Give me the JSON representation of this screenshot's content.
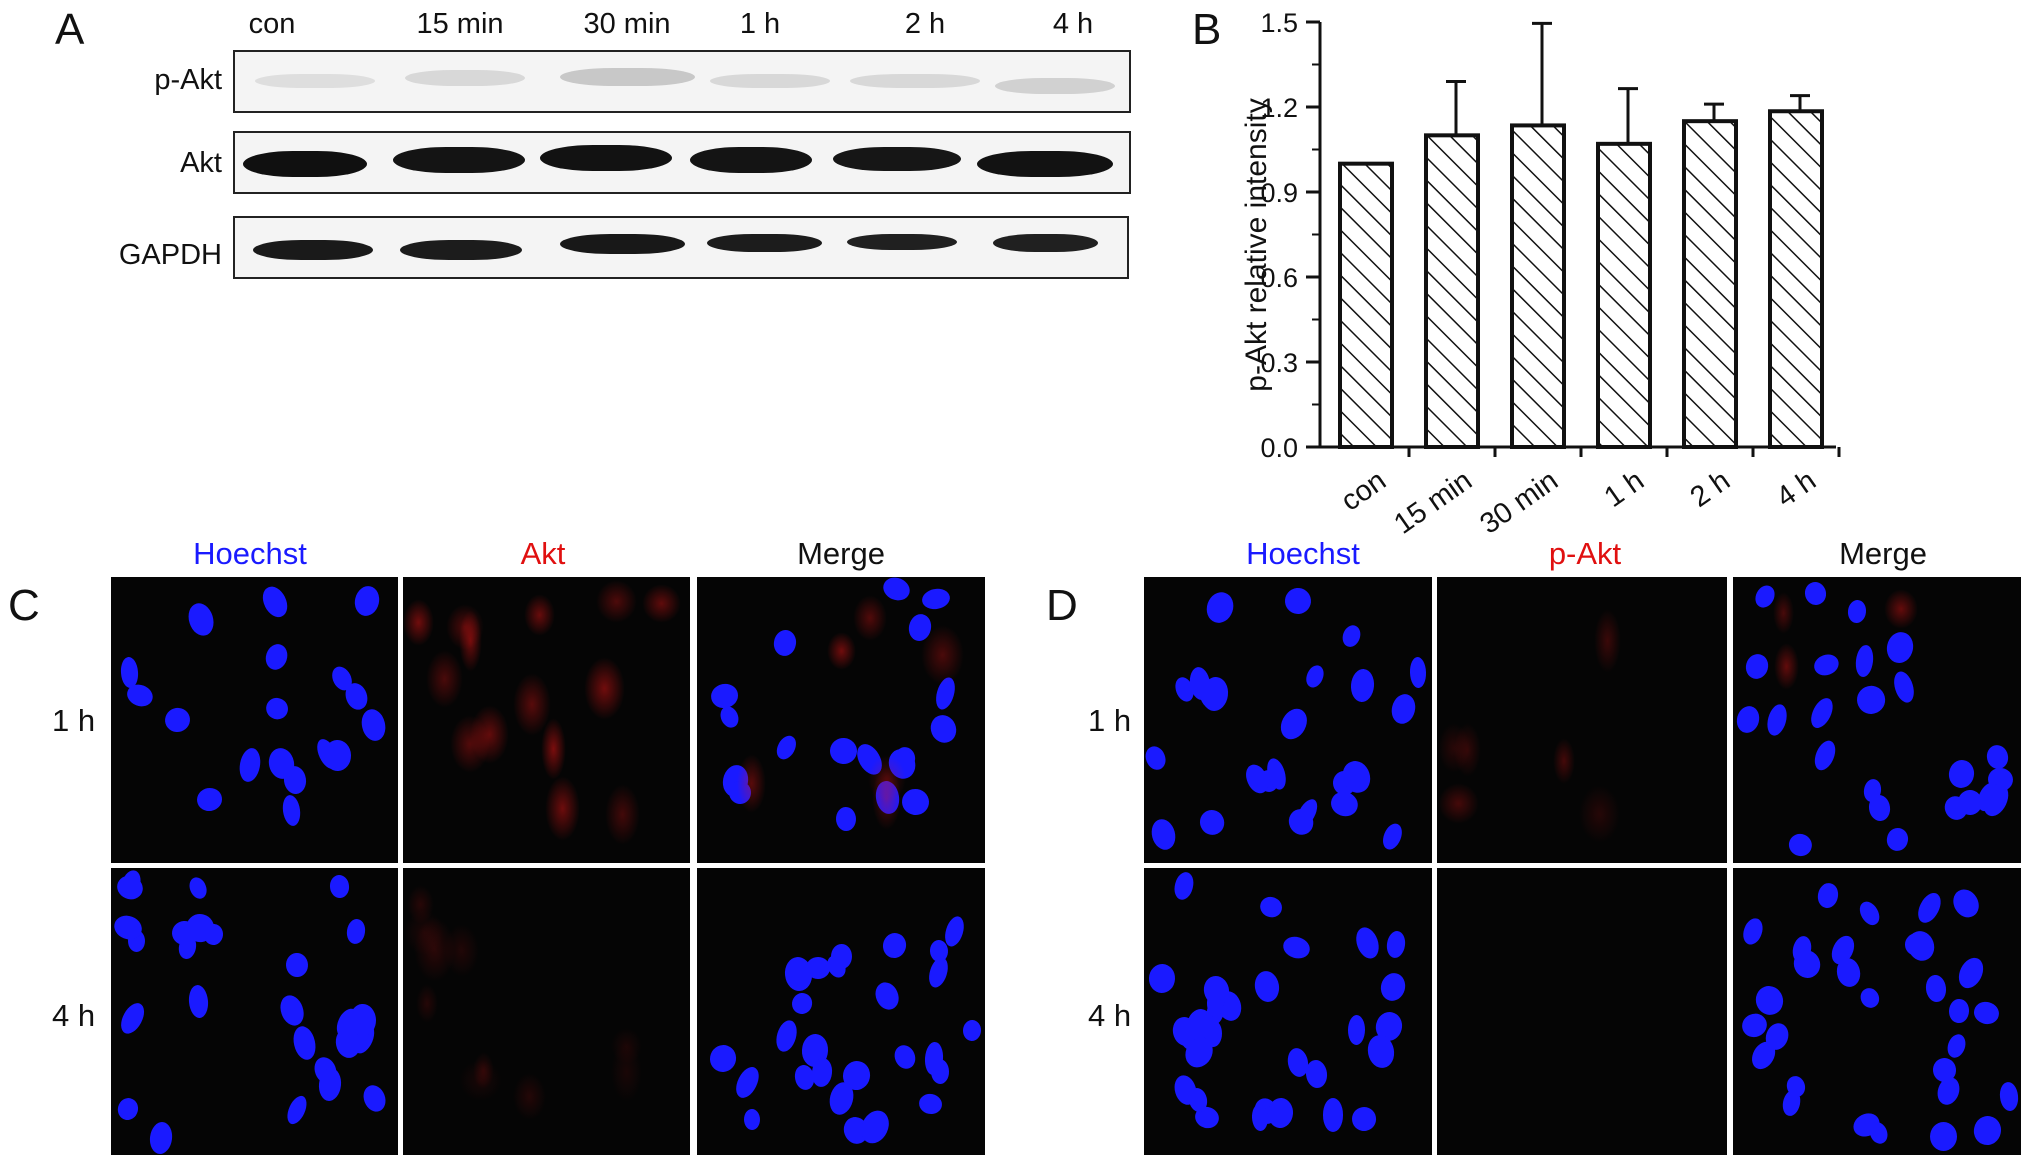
{
  "panels": {
    "a": {
      "letter": "A"
    },
    "b": {
      "letter": "B"
    },
    "c": {
      "letter": "C"
    },
    "d": {
      "letter": "D"
    }
  },
  "western": {
    "lanes": [
      "con",
      "15 min",
      "30 min",
      "1 h",
      "2 h",
      "4 h"
    ],
    "rows": [
      "p-Akt",
      "Akt",
      "GAPDH"
    ]
  },
  "chart_data": {
    "type": "bar",
    "categories": [
      "con",
      "15 min",
      "30 min",
      "1 h",
      "2 h",
      "4 h"
    ],
    "values": [
      1.0,
      1.1,
      1.135,
      1.07,
      1.15,
      1.185
    ],
    "errors": [
      0.0,
      0.19,
      0.36,
      0.195,
      0.06,
      0.055
    ],
    "ylabel": "p-Akt relative intensity",
    "ylim": [
      0,
      1.5
    ],
    "yticks": [
      "0.0",
      "0.3",
      "0.6",
      "0.9",
      "1.2",
      "1.5"
    ],
    "bar_pattern": "diagonal-hatch",
    "grid": false
  },
  "panel_c": {
    "columns": [
      "Hoechst",
      "Akt",
      "Merge"
    ],
    "rows": [
      "1 h",
      "4 h"
    ],
    "colors": {
      "hoechst": "#1a1aff",
      "akt": "#e01010",
      "merge": "#111111"
    }
  },
  "panel_d": {
    "columns": [
      "Hoechst",
      "p-Akt",
      "Merge"
    ],
    "rows": [
      "1 h",
      "4 h"
    ],
    "colors": {
      "hoechst": "#1a1aff",
      "pakt": "#e01010",
      "merge": "#111111"
    }
  }
}
